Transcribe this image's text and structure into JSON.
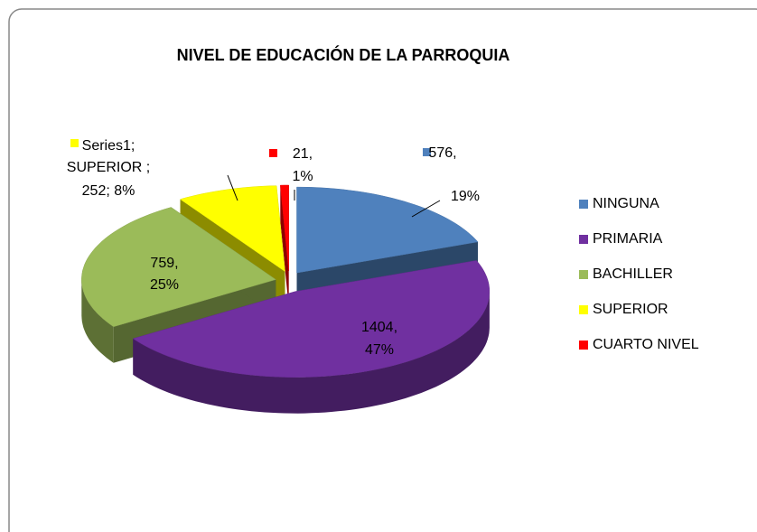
{
  "chart_data": {
    "type": "pie3d",
    "title": "NIVEL DE EDUCACIÓN DE LA PARROQUIA",
    "categories": [
      "NINGUNA",
      "PRIMARIA",
      "BACHILLER",
      "SUPERIOR",
      "CUARTO NIVEL"
    ],
    "values": [
      576,
      1404,
      759,
      252,
      21
    ],
    "value_labels": [
      [
        "576,",
        "19%"
      ],
      [
        "1404,",
        "47%"
      ],
      [
        "759,",
        "25%"
      ],
      [
        "Series1;",
        "SUPERIOR ;",
        "252; 8%"
      ],
      [
        "21,",
        "1%"
      ]
    ],
    "colors": [
      "#4f81bd",
      "#7030a0",
      "#9bbb59",
      "#ffff00",
      "#ff0000"
    ],
    "legend": "right"
  }
}
